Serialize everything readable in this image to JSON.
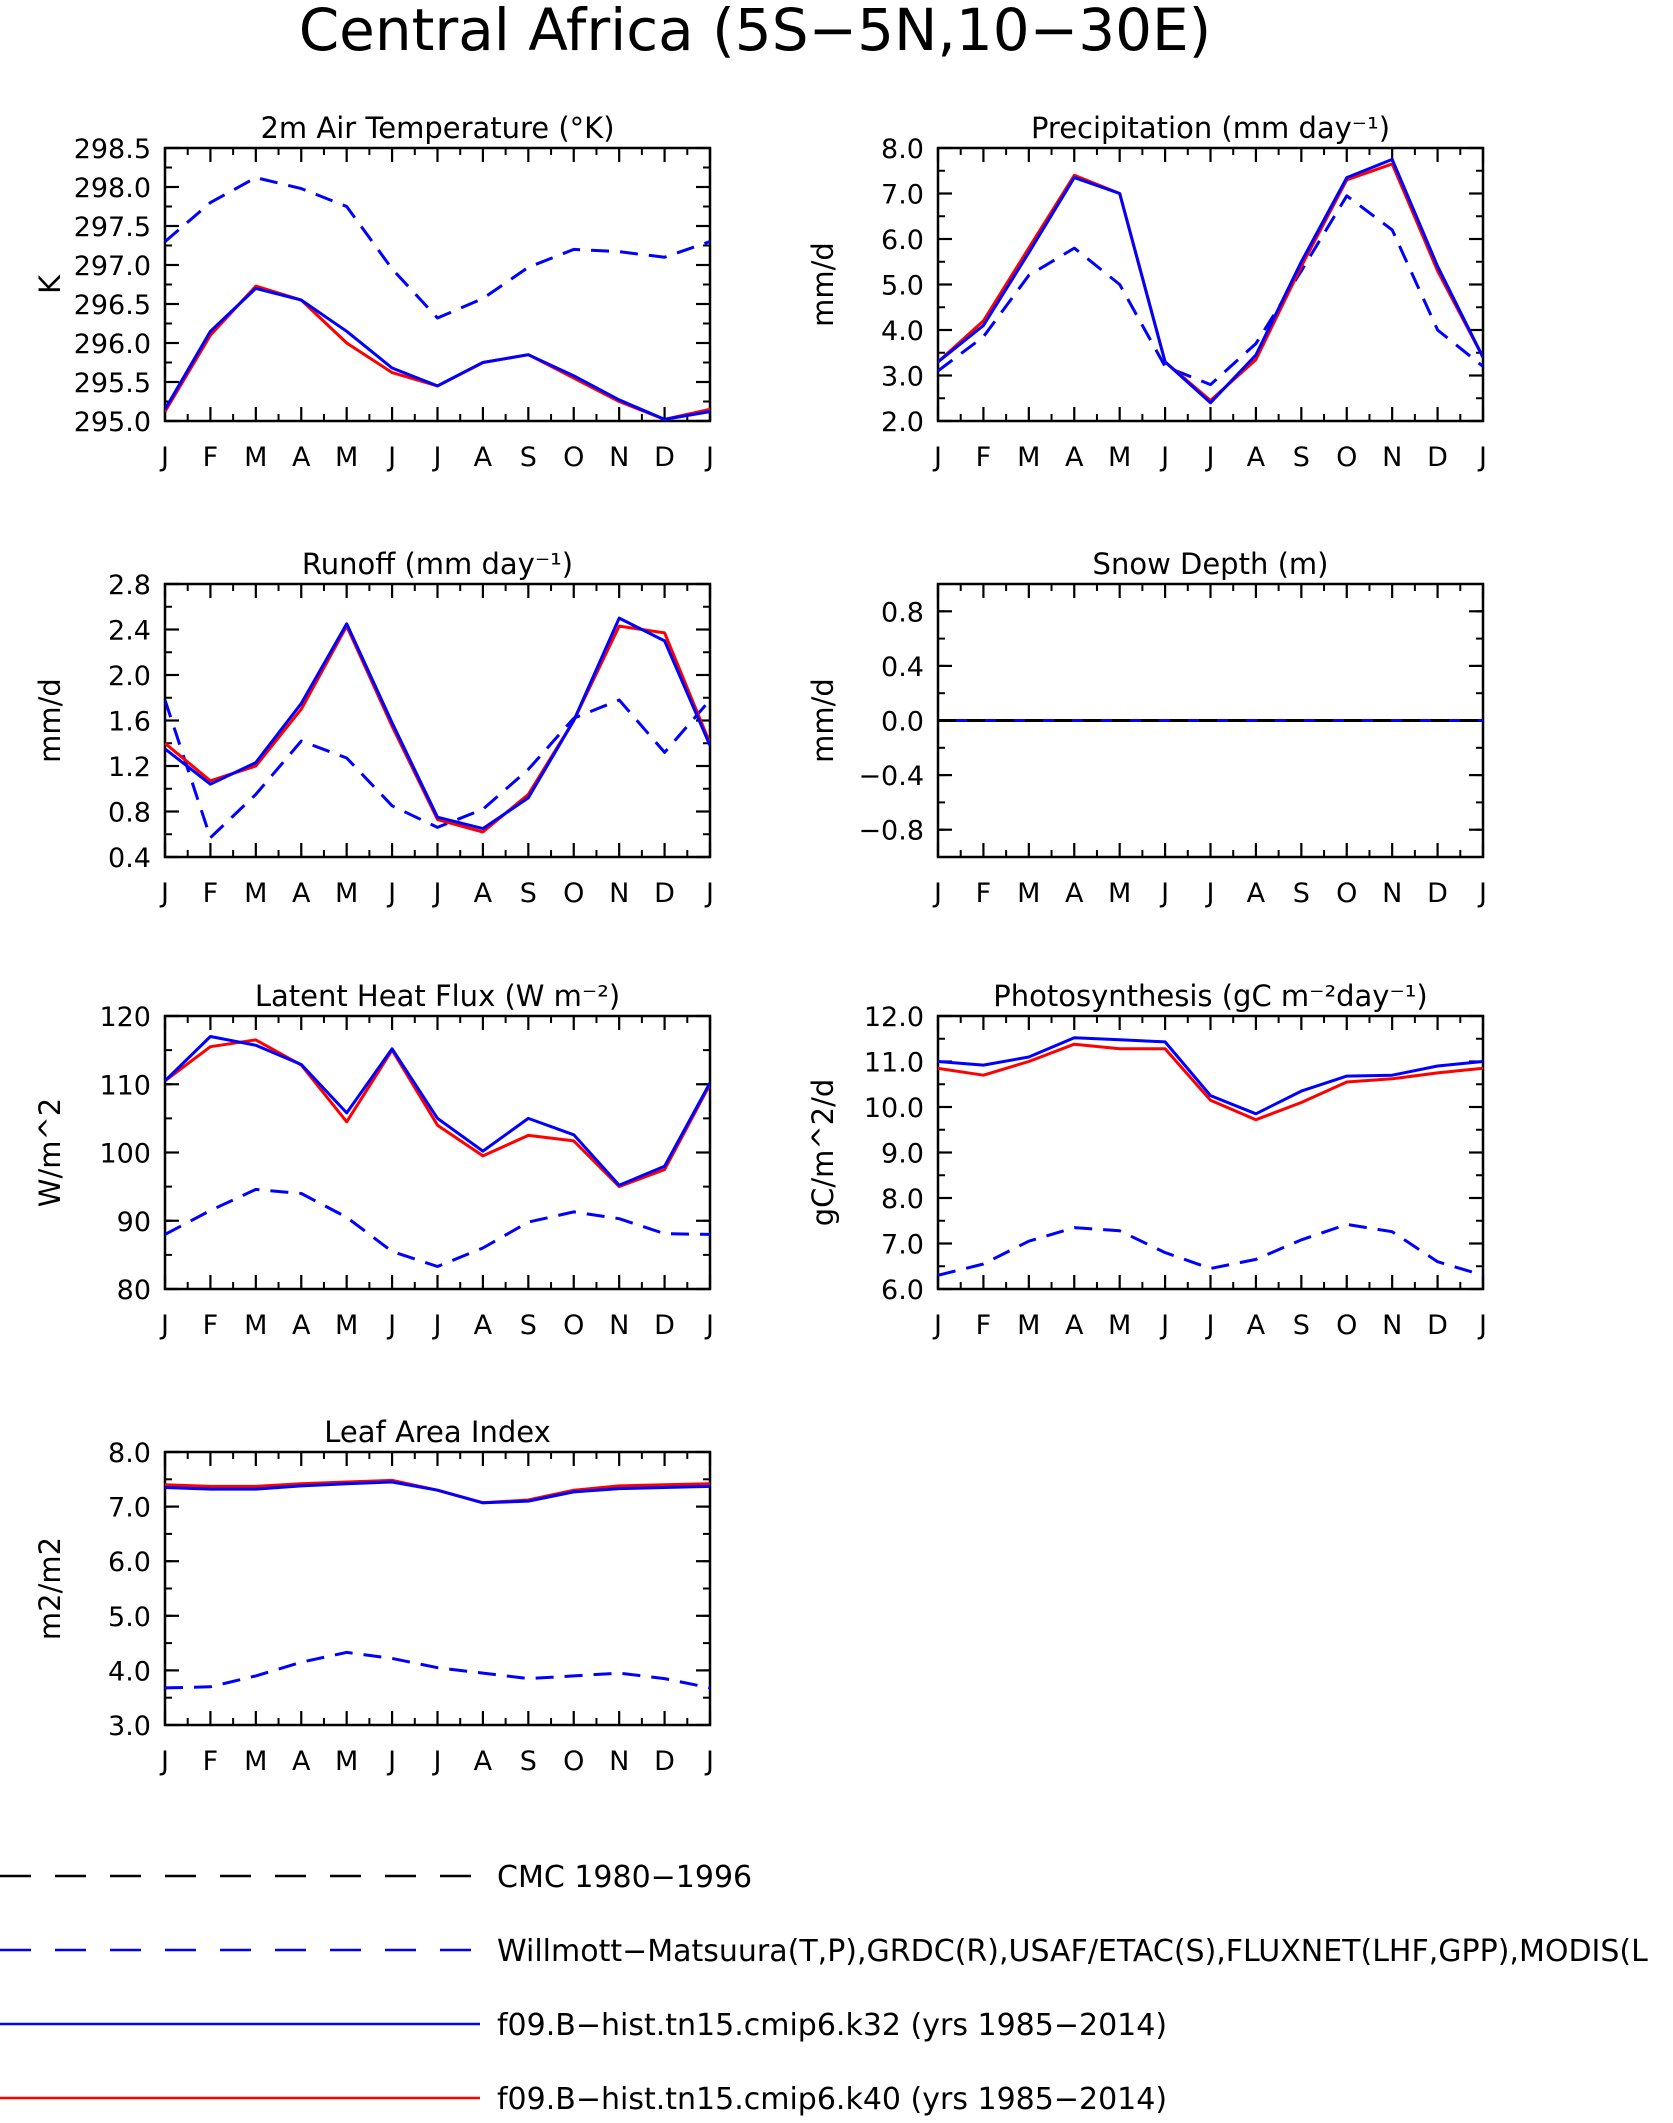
{
  "figure": {
    "title": "Central Africa (5S−5N,10−30E)"
  },
  "colors": {
    "obs": "#0000ff",
    "cmc": "#000000",
    "k32": "#0000ff",
    "k40": "#ff0000",
    "axis": "#000000"
  },
  "legend": [
    {
      "label": "CMC 1980−1996",
      "color": "#000000",
      "style": "dashed"
    },
    {
      "label": "Willmott−Matsuura(T,P),GRDC(R),USAF/ETAC(S),FLUXNET(LHF,GPP),MODIS(L",
      "color": "#0000ff",
      "style": "dashed"
    },
    {
      "label": "f09.B−hist.tn15.cmip6.k32 (yrs 1985−2014)",
      "color": "#0000ff",
      "style": "solid"
    },
    {
      "label": "f09.B−hist.tn15.cmip6.k40 (yrs 1985−2014)",
      "color": "#ff0000",
      "style": "solid"
    }
  ],
  "chart_data": [
    {
      "type": "line",
      "title": "2m Air Temperature (°K)",
      "xlabel": "",
      "ylabel": "K",
      "categories": [
        "J",
        "F",
        "M",
        "A",
        "M",
        "J",
        "J",
        "A",
        "S",
        "O",
        "N",
        "D",
        "J"
      ],
      "ylim": [
        295.0,
        298.5
      ],
      "yticks": [
        "295.0",
        "295.5",
        "296.0",
        "296.5",
        "297.0",
        "297.5",
        "298.0",
        "298.5"
      ],
      "series": [
        {
          "values": [
            297.3,
            297.8,
            298.12,
            297.98,
            297.75,
            296.95,
            296.32,
            296.57,
            296.97,
            297.2,
            297.17,
            297.1,
            297.3
          ],
          "color": "#0000ff",
          "style": "dashed"
        },
        {
          "values": [
            295.12,
            296.1,
            296.73,
            296.55,
            296.0,
            295.62,
            295.45,
            295.75,
            295.85,
            295.55,
            295.25,
            295.02,
            295.15
          ],
          "color": "#ff0000",
          "style": "solid"
        },
        {
          "values": [
            295.15,
            296.15,
            296.7,
            296.55,
            296.15,
            295.68,
            295.45,
            295.75,
            295.85,
            295.58,
            295.27,
            295.02,
            295.12
          ],
          "color": "#0000ff",
          "style": "solid"
        }
      ]
    },
    {
      "type": "line",
      "title": "Precipitation (mm day⁻¹)",
      "xlabel": "",
      "ylabel": "mm/d",
      "categories": [
        "J",
        "F",
        "M",
        "A",
        "M",
        "J",
        "J",
        "A",
        "S",
        "O",
        "N",
        "D",
        "J"
      ],
      "ylim": [
        2.0,
        8.0
      ],
      "yticks": [
        "2.0",
        "3.0",
        "4.0",
        "5.0",
        "6.0",
        "7.0",
        "8.0"
      ],
      "series": [
        {
          "values": [
            3.1,
            3.85,
            5.2,
            5.8,
            5.0,
            3.2,
            2.8,
            3.7,
            5.3,
            6.95,
            6.2,
            4.0,
            3.2
          ],
          "color": "#0000ff",
          "style": "dashed"
        },
        {
          "values": [
            3.3,
            4.2,
            5.8,
            7.4,
            7.0,
            3.3,
            2.45,
            3.35,
            5.4,
            7.3,
            7.65,
            5.3,
            3.4
          ],
          "color": "#ff0000",
          "style": "solid"
        },
        {
          "values": [
            3.3,
            4.1,
            5.7,
            7.35,
            7.0,
            3.3,
            2.4,
            3.45,
            5.5,
            7.35,
            7.75,
            5.4,
            3.4
          ],
          "color": "#0000ff",
          "style": "solid"
        }
      ]
    },
    {
      "type": "line",
      "title": "Runoff (mm day⁻¹)",
      "xlabel": "",
      "ylabel": "mm/d",
      "categories": [
        "J",
        "F",
        "M",
        "A",
        "M",
        "J",
        "J",
        "A",
        "S",
        "O",
        "N",
        "D",
        "J"
      ],
      "ylim": [
        0.4,
        2.8
      ],
      "yticks": [
        "0.4",
        "0.8",
        "1.2",
        "1.6",
        "2.0",
        "2.4",
        "2.8"
      ],
      "series": [
        {
          "values": [
            1.78,
            0.57,
            0.95,
            1.42,
            1.27,
            0.85,
            0.66,
            0.82,
            1.17,
            1.62,
            1.78,
            1.32,
            1.78
          ],
          "color": "#0000ff",
          "style": "dashed"
        },
        {
          "values": [
            1.4,
            1.07,
            1.2,
            1.7,
            2.43,
            1.55,
            0.73,
            0.62,
            0.95,
            1.6,
            2.43,
            2.37,
            1.4
          ],
          "color": "#ff0000",
          "style": "solid"
        },
        {
          "values": [
            1.35,
            1.04,
            1.23,
            1.75,
            2.45,
            1.58,
            0.75,
            0.65,
            0.92,
            1.6,
            2.5,
            2.3,
            1.38
          ],
          "color": "#0000ff",
          "style": "solid"
        }
      ]
    },
    {
      "type": "line",
      "title": "Snow Depth (m)",
      "xlabel": "",
      "ylabel": "mm/d",
      "categories": [
        "J",
        "F",
        "M",
        "A",
        "M",
        "J",
        "J",
        "A",
        "S",
        "O",
        "N",
        "D",
        "J"
      ],
      "ylim": [
        -1.0,
        1.0
      ],
      "yticks": [
        "−0.8",
        "−0.4",
        "0.0",
        "0.4",
        "0.8"
      ],
      "ytick_values": [
        -0.8,
        -0.4,
        0.0,
        0.4,
        0.8
      ],
      "series": [
        {
          "values": [
            0,
            0,
            0,
            0,
            0,
            0,
            0,
            0,
            0,
            0,
            0,
            0,
            0
          ],
          "color": "#0000ff",
          "style": "dashed"
        },
        {
          "values": [
            0,
            0,
            0,
            0,
            0,
            0,
            0,
            0,
            0,
            0,
            0,
            0,
            0
          ],
          "color": "#ff0000",
          "style": "solid"
        },
        {
          "values": [
            0,
            0,
            0,
            0,
            0,
            0,
            0,
            0,
            0,
            0,
            0,
            0,
            0
          ],
          "color": "#0000ff",
          "style": "solid"
        },
        {
          "values": [
            0,
            0,
            0,
            0,
            0,
            0,
            0,
            0,
            0,
            0,
            0,
            0,
            0
          ],
          "color": "#000000",
          "style": "dashed"
        }
      ]
    },
    {
      "type": "line",
      "title": "Latent Heat Flux (W m⁻²)",
      "xlabel": "",
      "ylabel": "W/m^2",
      "categories": [
        "J",
        "F",
        "M",
        "A",
        "M",
        "J",
        "J",
        "A",
        "S",
        "O",
        "N",
        "D",
        "J"
      ],
      "ylim": [
        80,
        120
      ],
      "yticks": [
        "80",
        "90",
        "100",
        "110",
        "120"
      ],
      "series": [
        {
          "values": [
            88,
            91.5,
            94.6,
            94,
            90.5,
            85.5,
            83.3,
            86,
            89.8,
            91.3,
            90.3,
            88.1,
            88
          ],
          "color": "#0000ff",
          "style": "dashed"
        },
        {
          "values": [
            110.5,
            115.5,
            116.5,
            112.8,
            104.5,
            115,
            104,
            99.5,
            102.5,
            101.7,
            95,
            97.5,
            110
          ],
          "color": "#ff0000",
          "style": "solid"
        },
        {
          "values": [
            110.5,
            117,
            115.7,
            112.9,
            105.8,
            115.2,
            105,
            100.2,
            105,
            102.6,
            95.2,
            98,
            110.2
          ],
          "color": "#0000ff",
          "style": "solid"
        }
      ]
    },
    {
      "type": "line",
      "title": "Photosynthesis (gC m⁻²day⁻¹)",
      "xlabel": "",
      "ylabel": "gC/m^2/d",
      "categories": [
        "J",
        "F",
        "M",
        "A",
        "M",
        "J",
        "J",
        "A",
        "S",
        "O",
        "N",
        "D",
        "J"
      ],
      "ylim": [
        6.0,
        12.0
      ],
      "yticks": [
        "6.0",
        "7.0",
        "8.0",
        "9.0",
        "10.0",
        "11.0",
        "12.0"
      ],
      "series": [
        {
          "values": [
            6.3,
            6.55,
            7.05,
            7.35,
            7.28,
            6.8,
            6.45,
            6.65,
            7.08,
            7.42,
            7.26,
            6.6,
            6.3
          ],
          "color": "#0000ff",
          "style": "dashed"
        },
        {
          "values": [
            10.85,
            10.7,
            11.0,
            11.38,
            11.28,
            11.28,
            10.15,
            9.72,
            10.1,
            10.55,
            10.62,
            10.75,
            10.85
          ],
          "color": "#ff0000",
          "style": "solid"
        },
        {
          "values": [
            11.0,
            10.92,
            11.1,
            11.52,
            11.48,
            11.43,
            10.25,
            9.85,
            10.35,
            10.68,
            10.7,
            10.9,
            11.0
          ],
          "color": "#0000ff",
          "style": "solid"
        }
      ]
    },
    {
      "type": "line",
      "title": "Leaf Area Index",
      "xlabel": "",
      "ylabel": "m2/m2",
      "categories": [
        "J",
        "F",
        "M",
        "A",
        "M",
        "J",
        "J",
        "A",
        "S",
        "O",
        "N",
        "D",
        "J"
      ],
      "ylim": [
        3.0,
        8.0
      ],
      "yticks": [
        "3.0",
        "4.0",
        "5.0",
        "6.0",
        "7.0",
        "8.0"
      ],
      "series": [
        {
          "values": [
            3.68,
            3.7,
            3.9,
            4.15,
            4.33,
            4.22,
            4.05,
            3.95,
            3.85,
            3.9,
            3.95,
            3.85,
            3.68
          ],
          "color": "#0000ff",
          "style": "dashed"
        },
        {
          "values": [
            7.4,
            7.37,
            7.37,
            7.42,
            7.45,
            7.48,
            7.3,
            7.07,
            7.12,
            7.3,
            7.38,
            7.4,
            7.42
          ],
          "color": "#ff0000",
          "style": "solid"
        },
        {
          "values": [
            7.35,
            7.32,
            7.32,
            7.38,
            7.42,
            7.45,
            7.3,
            7.07,
            7.1,
            7.27,
            7.33,
            7.35,
            7.37
          ],
          "color": "#0000ff",
          "style": "solid"
        }
      ]
    }
  ]
}
